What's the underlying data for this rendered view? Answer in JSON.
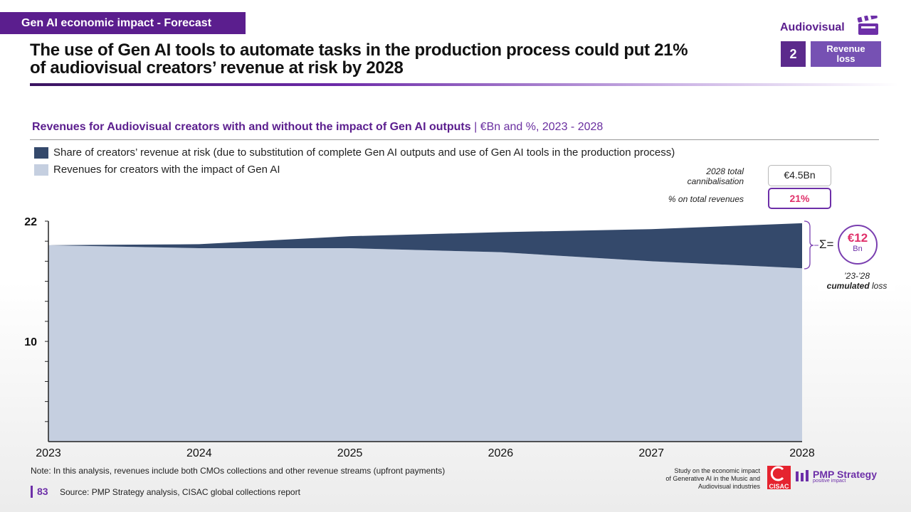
{
  "header": {
    "tag": "Gen AI economic impact - Forecast",
    "title_line1": "The use of Gen AI tools to automate tasks in the production process could put 21%",
    "title_line2": "of audiovisual creators’ revenue at risk by 2028",
    "section": "Audiovisual",
    "section_icon": "clapperboard-icon",
    "step_number": "2",
    "step_label_line1": "Revenue",
    "step_label_line2": "loss"
  },
  "chart_header": {
    "title_bold": "Revenues for Audiovisual creators with and without the impact of Gen AI outputs",
    "title_units": " | €Bn and %, 2023 - 2028"
  },
  "legend": [
    {
      "label": "Share of creators’ revenue at risk (due to substitution of complete Gen AI outputs and use of Gen AI tools in the production process)",
      "color": "#34496b"
    },
    {
      "label": "Revenues for creators with the impact of Gen AI",
      "color": "#c5cfe0"
    }
  ],
  "kpis": {
    "cannibalisation_label_line1": "2028 total",
    "cannibalisation_label_line2": "cannibalisation",
    "cannibalisation_value": "€4.5Bn",
    "pct_label": "% on total revenues",
    "pct_value": "21%"
  },
  "cumulative": {
    "symbol": "Σ=",
    "value": "€12",
    "unit": "Bn",
    "note_line1": "’23-’28",
    "note_bold": "cumulated",
    "note_rest": " loss"
  },
  "chart_data": {
    "type": "area",
    "title": "Revenues for Audiovisual creators with and without the impact of Gen AI outputs",
    "units": "€Bn",
    "x": [
      "2023",
      "2024",
      "2025",
      "2026",
      "2027",
      "2028"
    ],
    "ylim": [
      0,
      22
    ],
    "yticks_labeled": [
      10,
      22
    ],
    "series": [
      {
        "name": "Revenues for creators with the impact of Gen AI",
        "values": [
          19.6,
          19.3,
          19.3,
          18.9,
          18.0,
          17.3
        ],
        "color": "#c5cfe0"
      },
      {
        "name": "Share of creators’ revenue at risk",
        "values": [
          0.0,
          0.4,
          1.2,
          2.0,
          3.2,
          4.5
        ],
        "color": "#34496b"
      }
    ],
    "stacked": true
  },
  "footer": {
    "note": "Note: In this analysis, revenues include both CMOs collections and other revenue streams (upfront payments)",
    "page": "83",
    "source": "Source:  PMP Strategy analysis, CISAC global collections report",
    "study_line1": "Study on the economic impact",
    "study_line2": "of Generative AI in the Music and",
    "study_line3": "Audiovisual industries",
    "cisac": "CISAC",
    "pmp_name": "PMP Strategy",
    "pmp_tagline": "positive impact"
  }
}
